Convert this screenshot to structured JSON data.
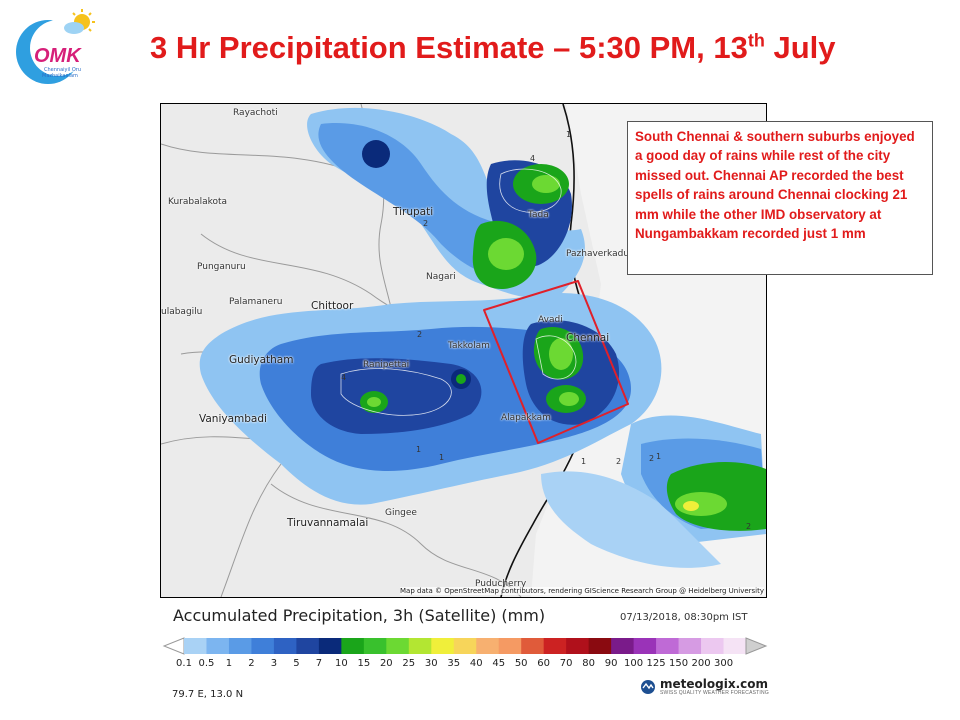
{
  "header": {
    "logo_text": "OMK",
    "logo_sub1": "Chennaiyil Oru",
    "logo_sub2": "Mazhaikaalam",
    "title_main": "3 Hr Precipitation Estimate – 5:30 PM, 13",
    "title_sup": "th",
    "title_end": " July"
  },
  "note": {
    "text": "South Chennai & southern suburbs enjoyed a good day of rains while rest of the city missed out.  Chennai AP recorded the best spells of rains around Chennai clocking 21 mm while the other IMD observatory at Nungambakkam recorded just 1 mm"
  },
  "map": {
    "places": {
      "rayachoti": "Rayachoti",
      "kurabalakota": "Kurabalakota",
      "tirupati": "Tirupati",
      "punganuru": "Punganuru",
      "palamaneru": "Palamaneru",
      "chittoor": "Chittoor",
      "tada": "Tada",
      "pazhaverkadu": "Pazhaverkadu",
      "nagari": "Nagari",
      "avadi": "Avadi",
      "chennai": "Chennai",
      "takkolam": "Takkolam",
      "gudiyatham": "Gudiyatham",
      "ranipettai": "Ranipettai",
      "vaniyambadi": "Vaniyambadi",
      "alapakkam": "Alapakkam",
      "gingee": "Gingee",
      "tiruvannamalai": "Tiruvannamalai",
      "puducherry": "Puducherry",
      "kulabagilu": "ulabagilu"
    },
    "attribution": "Map data © OpenStreetMap contributors, rendering GIScience Research Group @ Heidelberg University",
    "highlight_color": "#e0202a"
  },
  "legend": {
    "title": "Accumulated Precipitation, 3h (Satellite) (mm)",
    "timestamp": "07/13/2018, 08:30pm IST",
    "labels": [
      "0.1",
      "0.5",
      "1",
      "2",
      "3",
      "5",
      "7",
      "10",
      "15",
      "20",
      "25",
      "30",
      "35",
      "40",
      "45",
      "50",
      "60",
      "70",
      "80",
      "90",
      "100",
      "125",
      "150",
      "200",
      "300"
    ],
    "colors": [
      "#a9d2f5",
      "#7cb5f0",
      "#5a9be6",
      "#3f7fd9",
      "#2e62c3",
      "#1f45a0",
      "#0a2a7a",
      "#1aa51a",
      "#39c12d",
      "#6cd933",
      "#b3e632",
      "#f0ef3a",
      "#f7d55a",
      "#f7b070",
      "#f59a63",
      "#e05b3a",
      "#cc2222",
      "#b0101b",
      "#8a0a10",
      "#7a1b8a",
      "#9a33b8",
      "#bf6ad6",
      "#d69be3",
      "#ecc8f0",
      "#f5e3f5"
    ],
    "coordinate": "79.7 E, 13.0 N"
  },
  "brand": {
    "name": "meteologix.com",
    "tagline": "SWISS QUALITY WEATHER FORECASTING"
  }
}
